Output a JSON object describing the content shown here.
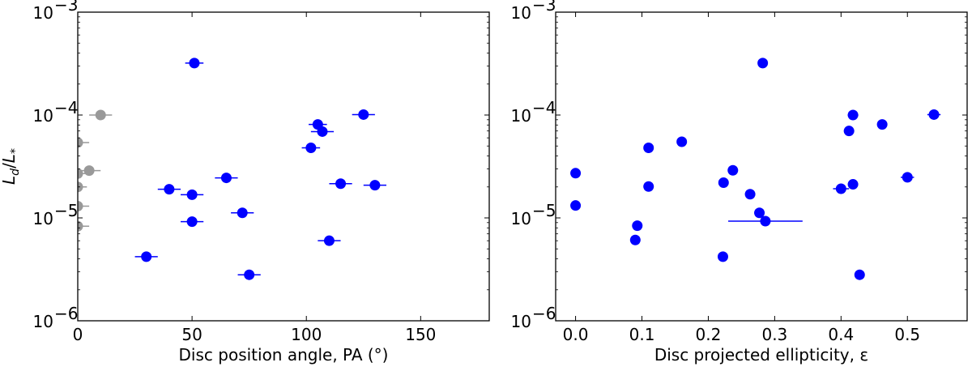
{
  "chart_data": [
    {
      "type": "scatter",
      "xlabel": "Disc position angle, PA (°)",
      "ylabel": "L_d/L_*",
      "xlim": [
        0,
        180
      ],
      "ylim": [
        1e-06,
        0.001
      ],
      "yscale": "log",
      "grid": false,
      "x_ticks": [
        {
          "value": 0,
          "label": "0"
        },
        {
          "value": 50,
          "label": "50"
        },
        {
          "value": 100,
          "label": "100"
        },
        {
          "value": 150,
          "label": "150"
        }
      ],
      "y_ticks": [
        {
          "value": 1e-06,
          "label": "10",
          "exp": "−6"
        },
        {
          "value": 1e-05,
          "label": "10",
          "exp": "−5"
        },
        {
          "value": 0.0001,
          "label": "10",
          "exp": "−4"
        },
        {
          "value": 0.001,
          "label": "10",
          "exp": "−3"
        }
      ],
      "series": [
        {
          "color": "#0000ff",
          "points": [
            {
              "x": 51,
              "y": 0.00032,
              "xerr": 4
            },
            {
              "x": 125,
              "y": 0.000101,
              "xerr": 5
            },
            {
              "x": 105,
              "y": 8.1e-05,
              "xerr": 4
            },
            {
              "x": 107,
              "y": 6.9e-05,
              "xerr": 5
            },
            {
              "x": 102,
              "y": 4.8e-05,
              "xerr": 4
            },
            {
              "x": 65,
              "y": 2.45e-05,
              "xerr": 5
            },
            {
              "x": 115,
              "y": 2.15e-05,
              "xerr": 5
            },
            {
              "x": 130,
              "y": 2.08e-05,
              "xerr": 5
            },
            {
              "x": 40,
              "y": 1.9e-05,
              "xerr": 5
            },
            {
              "x": 50,
              "y": 1.68e-05,
              "xerr": 5
            },
            {
              "x": 72,
              "y": 1.12e-05,
              "xerr": 5
            },
            {
              "x": 50,
              "y": 9.2e-06,
              "xerr": 5
            },
            {
              "x": 110,
              "y": 6e-06,
              "xerr": 5
            },
            {
              "x": 30,
              "y": 4.2e-06,
              "xerr": 5
            },
            {
              "x": 75,
              "y": 2.8e-06,
              "xerr": 5
            }
          ]
        },
        {
          "color": "#999999",
          "points": [
            {
              "x": 10,
              "y": 0.0001,
              "xerr": 5
            },
            {
              "x": 0,
              "y": 5.4e-05,
              "xerr": 5
            },
            {
              "x": 5,
              "y": 2.88e-05,
              "xerr": 5
            },
            {
              "x": 0,
              "y": 2.7e-05,
              "xerr": 4
            },
            {
              "x": 0,
              "y": 2e-05,
              "xerr": 4
            },
            {
              "x": 0,
              "y": 1.3e-05,
              "xerr": 5
            },
            {
              "x": 0,
              "y": 8.3e-06,
              "xerr": 5
            }
          ]
        }
      ]
    },
    {
      "type": "scatter",
      "xlabel": "Disc projected ellipticity, ε",
      "ylabel": "",
      "xlim": [
        -0.03,
        0.59
      ],
      "ylim": [
        1e-06,
        0.001
      ],
      "yscale": "log",
      "grid": false,
      "x_ticks": [
        {
          "value": 0.0,
          "label": "0.0"
        },
        {
          "value": 0.1,
          "label": "0.1"
        },
        {
          "value": 0.2,
          "label": "0.2"
        },
        {
          "value": 0.3,
          "label": "0.3"
        },
        {
          "value": 0.4,
          "label": "0.4"
        },
        {
          "value": 0.5,
          "label": "0.5"
        }
      ],
      "y_ticks": [
        {
          "value": 1e-06,
          "label": "10",
          "exp": "−6"
        },
        {
          "value": 1e-05,
          "label": "10",
          "exp": "−5"
        },
        {
          "value": 0.0001,
          "label": "10",
          "exp": "−4"
        },
        {
          "value": 0.001,
          "label": "10",
          "exp": "−3"
        }
      ],
      "series": [
        {
          "color": "#0000ff",
          "points": [
            {
              "x": 0.282,
              "y": 0.00032,
              "xerr": 0
            },
            {
              "x": 0.54,
              "y": 0.000101,
              "xerr": 0.01
            },
            {
              "x": 0.418,
              "y": 0.0001,
              "xerr": 0.008
            },
            {
              "x": 0.462,
              "y": 8.1e-05,
              "xerr": 0
            },
            {
              "x": 0.412,
              "y": 7e-05,
              "xerr": 0
            },
            {
              "x": 0.16,
              "y": 5.5e-05,
              "xerr": 0
            },
            {
              "x": 0.11,
              "y": 4.8e-05,
              "xerr": 0
            },
            {
              "x": 0.237,
              "y": 2.9e-05,
              "xerr": 0
            },
            {
              "x": 0.0,
              "y": 2.72e-05,
              "xerr": 0
            },
            {
              "x": 0.5,
              "y": 2.48e-05,
              "xerr": 0.01
            },
            {
              "x": 0.223,
              "y": 2.2e-05,
              "xerr": 0
            },
            {
              "x": 0.418,
              "y": 2.12e-05,
              "xerr": 0
            },
            {
              "x": 0.11,
              "y": 2.02e-05,
              "xerr": 0
            },
            {
              "x": 0.4,
              "y": 1.92e-05,
              "xerr": 0.012
            },
            {
              "x": 0.263,
              "y": 1.7e-05,
              "xerr": 0
            },
            {
              "x": 0.0,
              "y": 1.32e-05,
              "xerr": 0
            },
            {
              "x": 0.277,
              "y": 1.12e-05,
              "xerr": 0
            },
            {
              "x": 0.286,
              "y": 9.3e-06,
              "xerr": 0.056
            },
            {
              "x": 0.093,
              "y": 8.4e-06,
              "xerr": 0
            },
            {
              "x": 0.09,
              "y": 6.1e-06,
              "xerr": 0
            },
            {
              "x": 0.222,
              "y": 4.2e-06,
              "xerr": 0
            },
            {
              "x": 0.428,
              "y": 2.8e-06,
              "xerr": 0
            }
          ]
        }
      ]
    }
  ]
}
